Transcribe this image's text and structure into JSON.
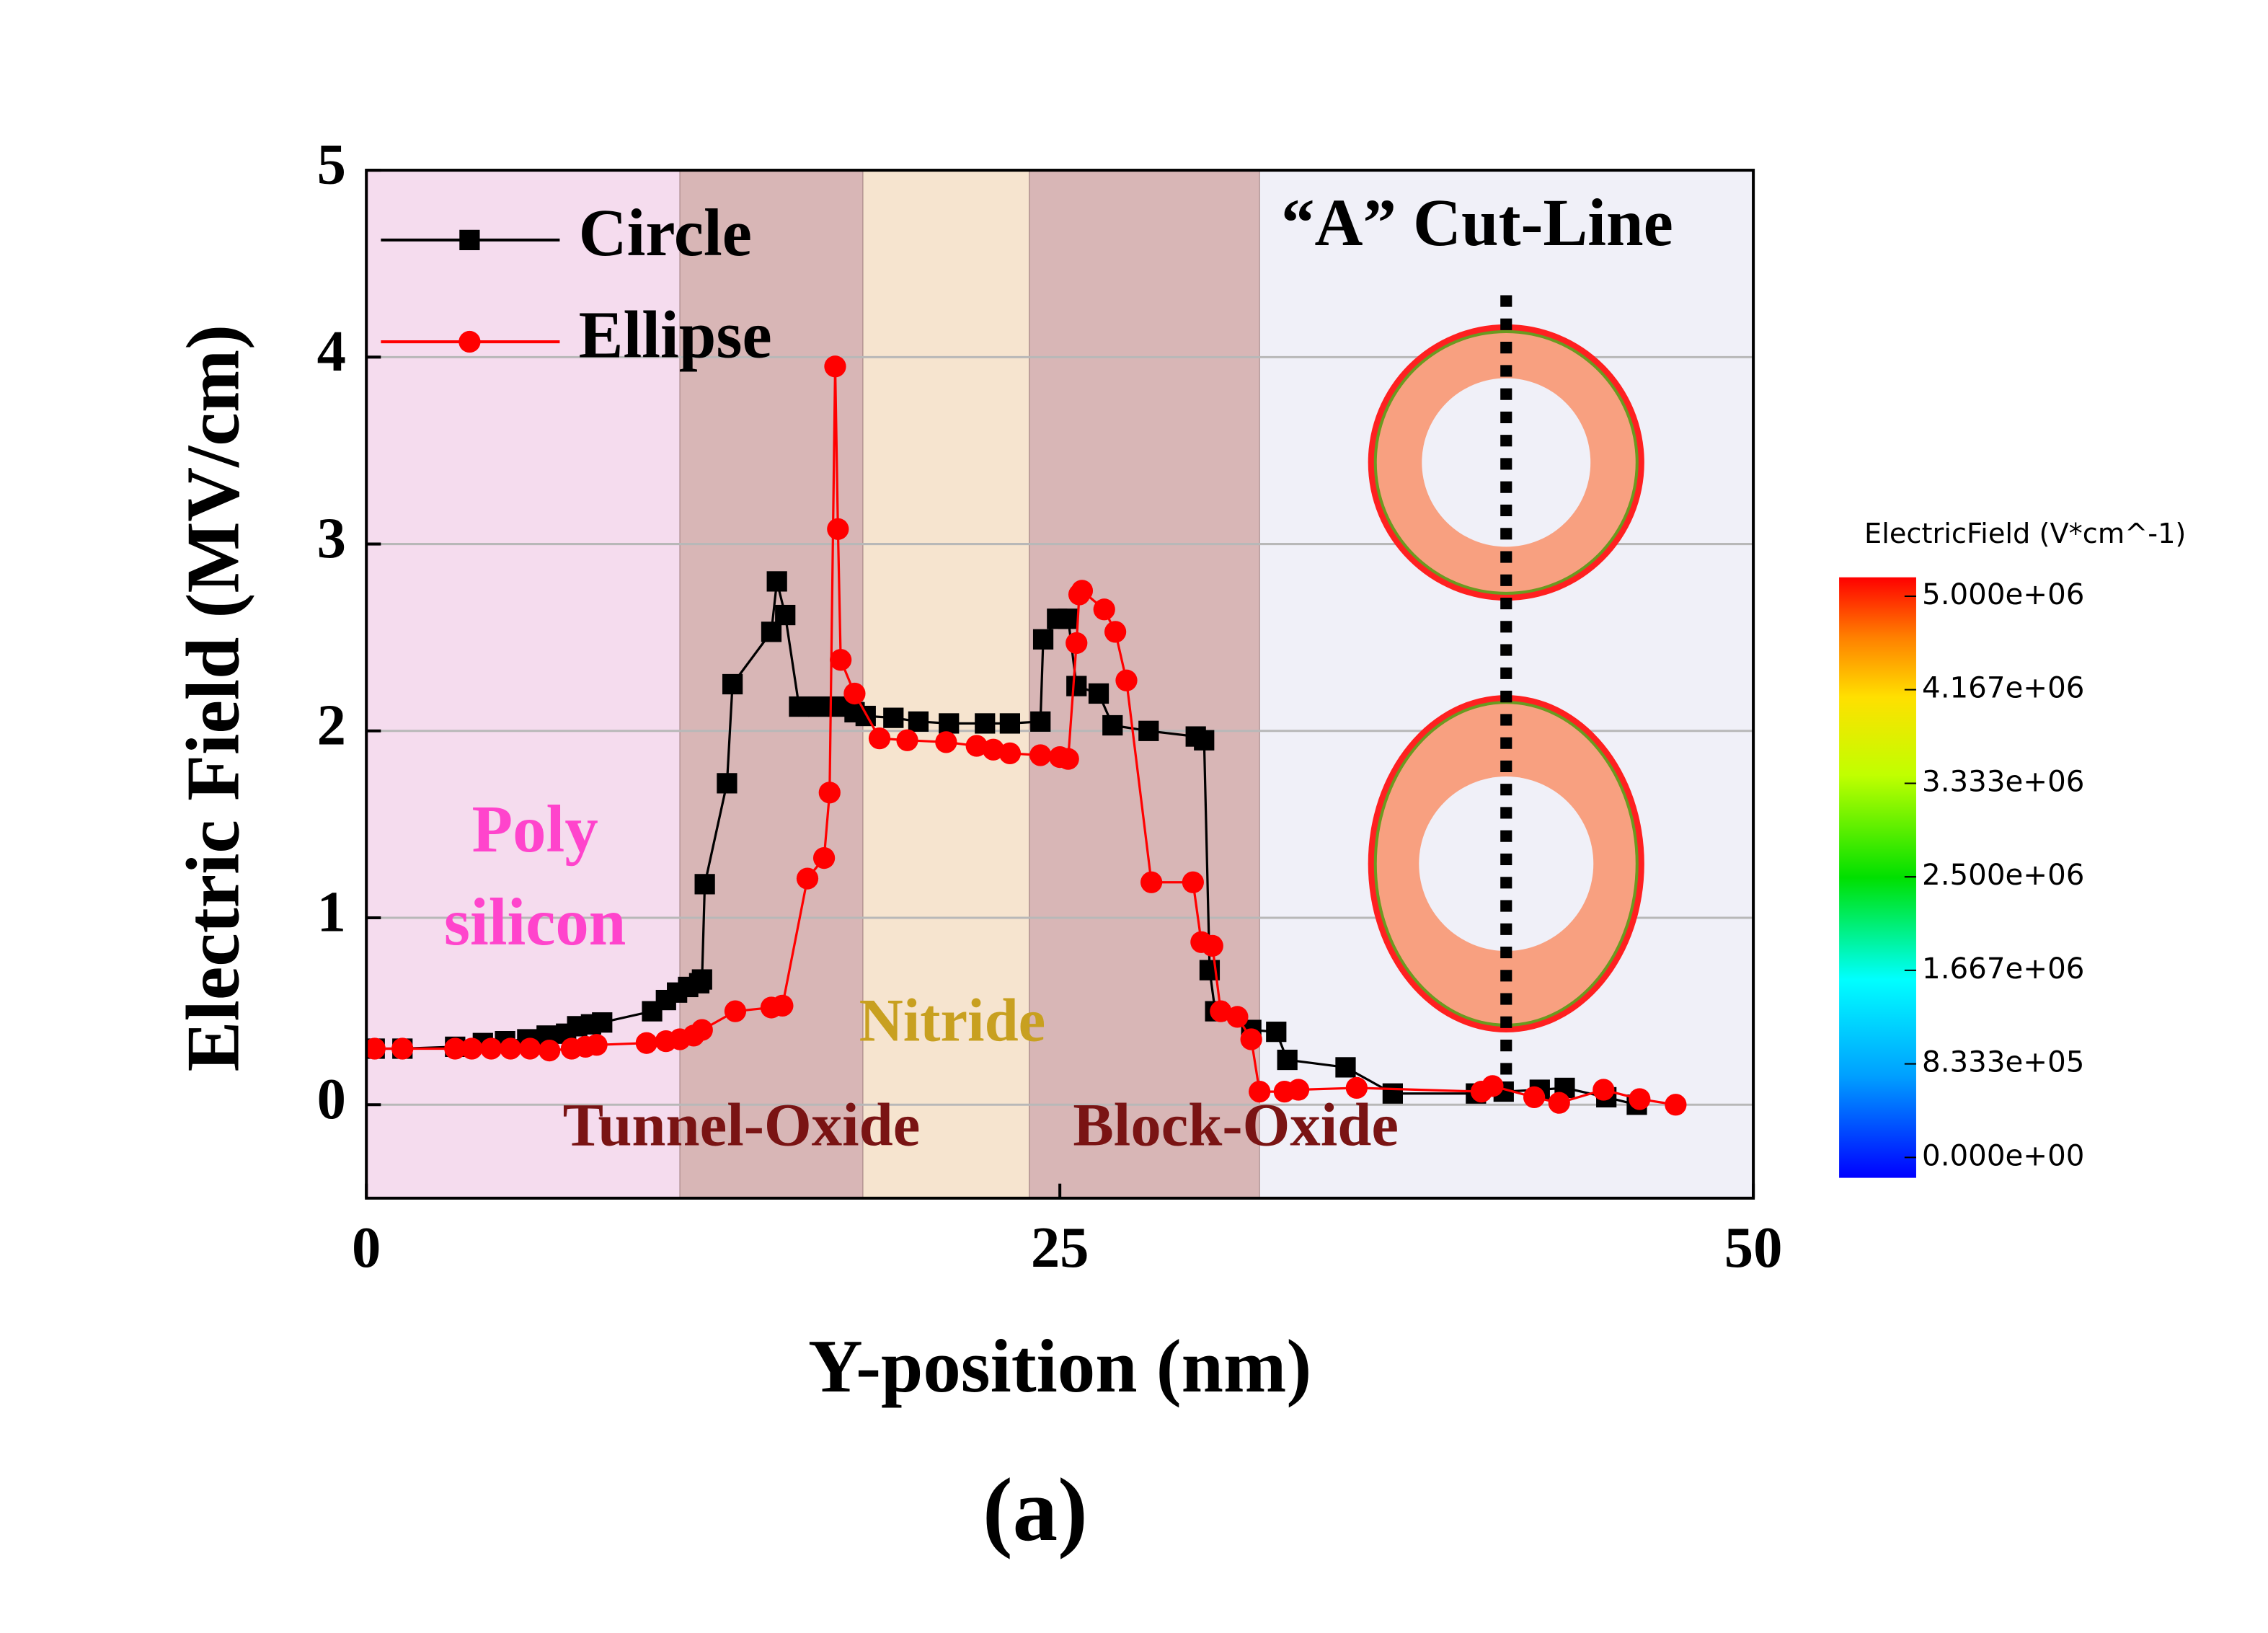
{
  "chart_data": {
    "type": "line",
    "title": "(a)",
    "x_label": "Y-position (nm)",
    "y_label": "Electric Field (MV/cm)",
    "xlim": [
      0,
      50
    ],
    "ylim": [
      -0.5,
      5
    ],
    "xticks": [
      0,
      25,
      50
    ],
    "yticks": [
      0,
      1,
      2,
      3,
      4,
      5
    ],
    "grid": true,
    "legend": "upper-left",
    "background": "#f0f0f8",
    "regions": [
      {
        "label": [
          "Poly",
          "silicon"
        ],
        "start": 0,
        "end": 11.3,
        "color": "#f5dcee",
        "label_color": "#ff44cc"
      },
      {
        "label": [
          "Tunnel-Oxide"
        ],
        "start": 11.3,
        "end": 17.9,
        "color": "#d8b6b6",
        "label_color": "#7a1414"
      },
      {
        "label": [
          "Nitride"
        ],
        "start": 17.9,
        "end": 23.9,
        "color": "#f6e4cf",
        "label_color": "#c8a020"
      },
      {
        "label": [
          "Block-Oxide"
        ],
        "start": 23.9,
        "end": 32.2,
        "color": "#d8b6b6",
        "label_color": "#7a1414"
      }
    ],
    "annotation": "“A” Cut-Line",
    "series": [
      {
        "name": "Circle",
        "color": "#000000",
        "marker": "square",
        "x": [
          0.3,
          1.3,
          3.2,
          4.2,
          5.0,
          5.8,
          6.5,
          7.2,
          7.6,
          8.1,
          8.5,
          10.3,
          10.8,
          11.2,
          11.6,
          12.0,
          12.1,
          12.2,
          13.0,
          13.2,
          14.6,
          14.8,
          15.1,
          15.6,
          16.3,
          17.0,
          17.6,
          18.0,
          19.0,
          19.9,
          21.0,
          22.3,
          23.2,
          24.3,
          24.4,
          24.9,
          25.3,
          25.6,
          26.4,
          26.9,
          28.2,
          29.9,
          30.2,
          30.4,
          30.6,
          31.9,
          32.8,
          33.2,
          35.3,
          37.0,
          40.0,
          41.0,
          42.3,
          43.2,
          44.7,
          45.8
        ],
        "values": [
          0.3,
          0.3,
          0.31,
          0.33,
          0.34,
          0.35,
          0.37,
          0.38,
          0.42,
          0.43,
          0.44,
          0.5,
          0.56,
          0.6,
          0.63,
          0.65,
          0.67,
          1.18,
          1.72,
          2.25,
          2.53,
          2.8,
          2.62,
          2.13,
          2.13,
          2.13,
          2.1,
          2.08,
          2.07,
          2.05,
          2.04,
          2.04,
          2.04,
          2.05,
          2.49,
          2.6,
          2.6,
          2.24,
          2.2,
          2.03,
          2.0,
          1.97,
          1.95,
          0.72,
          0.5,
          0.4,
          0.39,
          0.24,
          0.2,
          0.06,
          0.06,
          0.07,
          0.08,
          0.09,
          0.04,
          0.0
        ]
      },
      {
        "name": "Ellipse",
        "color": "#ff0000",
        "marker": "circle",
        "x": [
          0.3,
          1.3,
          3.2,
          3.8,
          4.5,
          5.2,
          5.9,
          6.6,
          7.4,
          7.9,
          8.3,
          10.1,
          10.8,
          11.3,
          11.8,
          12.1,
          13.3,
          14.6,
          15.0,
          15.9,
          16.5,
          16.7,
          16.9,
          17.0,
          17.1,
          17.6,
          18.5,
          19.5,
          20.9,
          22.0,
          22.6,
          23.2,
          24.3,
          25.0,
          25.3,
          25.6,
          25.7,
          25.8,
          26.6,
          27.0,
          27.4,
          28.3,
          29.8,
          30.1,
          30.5,
          30.8,
          31.4,
          31.9,
          32.2,
          33.1,
          33.6,
          35.7,
          40.2,
          40.6,
          42.1,
          43.0,
          44.6,
          45.9,
          47.2
        ],
        "values": [
          0.3,
          0.3,
          0.3,
          0.3,
          0.3,
          0.3,
          0.3,
          0.29,
          0.3,
          0.31,
          0.32,
          0.33,
          0.34,
          0.35,
          0.37,
          0.4,
          0.5,
          0.52,
          0.53,
          1.21,
          1.32,
          1.67,
          3.95,
          3.08,
          2.38,
          2.2,
          1.96,
          1.95,
          1.94,
          1.92,
          1.9,
          1.88,
          1.87,
          1.86,
          1.85,
          2.47,
          2.73,
          2.75,
          2.65,
          2.53,
          2.27,
          1.19,
          1.19,
          0.87,
          0.85,
          0.5,
          0.47,
          0.35,
          0.07,
          0.07,
          0.08,
          0.09,
          0.07,
          0.1,
          0.04,
          0.01,
          0.08,
          0.03,
          0.0
        ]
      }
    ],
    "colorbar": {
      "title": "ElectricField (V*cm^-1)",
      "clim": [
        0,
        5000000
      ],
      "ticks": [
        {
          "value": 5000000,
          "label": "5.000e+06"
        },
        {
          "value": 4167000,
          "label": "4.167e+06"
        },
        {
          "value": 3333000,
          "label": "3.333e+06"
        },
        {
          "value": 2500000,
          "label": "2.500e+06"
        },
        {
          "value": 1667000,
          "label": "1.667e+06"
        },
        {
          "value": 833300,
          "label": "8.333e+05"
        },
        {
          "value": 0,
          "label": "0.000e+00"
        }
      ]
    }
  }
}
